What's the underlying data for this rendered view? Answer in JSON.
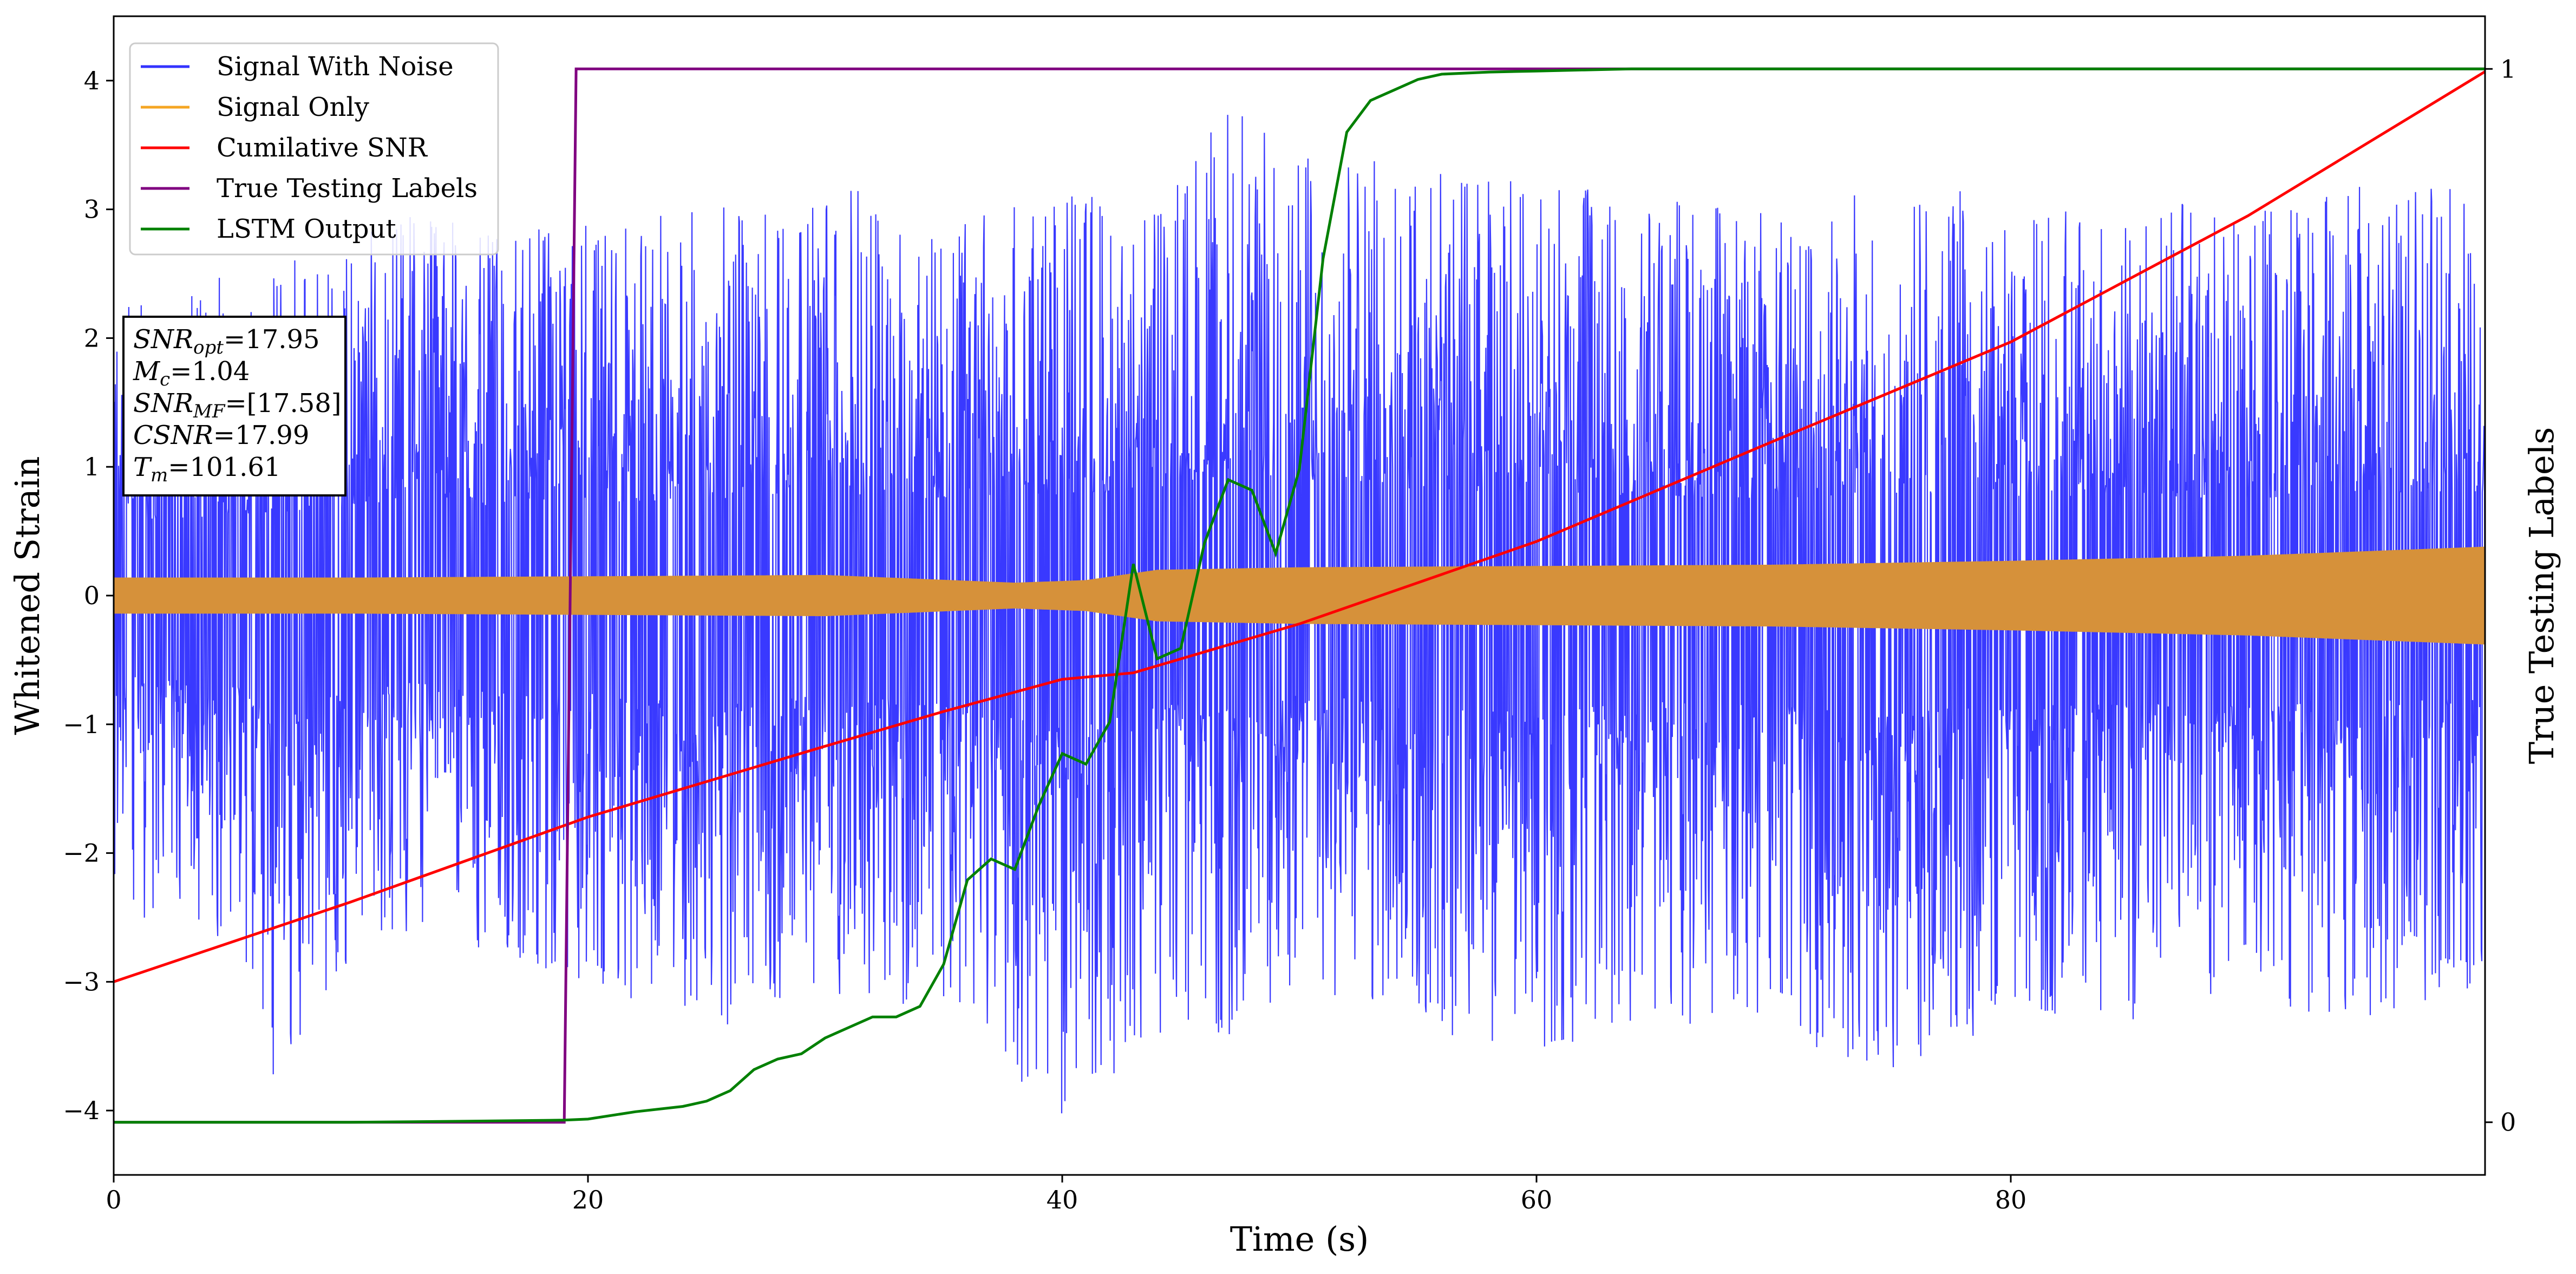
{
  "chart_data": {
    "type": "line",
    "xlabel": "Time (s)",
    "ylabel": "Whitened Strain",
    "y2label": "True Testing Labels",
    "xlim": [
      0,
      100
    ],
    "ylim": [
      -4.5,
      4.5
    ],
    "y2lim": [
      -0.05,
      1.05
    ],
    "xticks": [
      0,
      20,
      40,
      60,
      80
    ],
    "yticks": [
      -4,
      -3,
      -2,
      -1,
      0,
      1,
      2,
      3,
      4
    ],
    "y2ticks": [
      0,
      1
    ],
    "grid": false,
    "legend_position": "upper-left",
    "series": [
      {
        "name": "Signal With Noise",
        "axis": "left",
        "color": "#3333ff",
        "description": "dense noisy strain, envelope roughly within [-4.1, 3.8]",
        "x": [
          0,
          5,
          7,
          10,
          13,
          15,
          20,
          25,
          30,
          35,
          40,
          45,
          47,
          50,
          55,
          60,
          65,
          70,
          75,
          80,
          85,
          90,
          95,
          100
        ],
        "y_upper": [
          2.3,
          2.5,
          2.6,
          2.7,
          3.2,
          2.8,
          2.9,
          3.0,
          3.2,
          3.0,
          3.1,
          3.3,
          3.8,
          3.6,
          3.3,
          3.2,
          3.1,
          3.0,
          3.2,
          3.1,
          3.1,
          3.0,
          3.2,
          3.2
        ],
        "y_lower": [
          -2.5,
          -2.7,
          -3.9,
          -2.8,
          -2.7,
          -2.8,
          -3.0,
          -3.4,
          -3.1,
          -3.3,
          -4.1,
          -3.3,
          -3.5,
          -3.0,
          -3.4,
          -3.6,
          -3.3,
          -3.4,
          -3.7,
          -3.3,
          -3.4,
          -3.2,
          -3.3,
          -3.1
        ]
      },
      {
        "name": "Signal Only",
        "axis": "left",
        "color": "#f5a623",
        "description": "chirp waveform, amplitude envelope",
        "x": [
          0,
          10,
          20,
          30,
          38,
          41,
          44,
          50,
          60,
          70,
          80,
          90,
          100
        ],
        "amplitude": [
          0.14,
          0.14,
          0.15,
          0.16,
          0.1,
          0.12,
          0.2,
          0.22,
          0.23,
          0.24,
          0.27,
          0.31,
          0.38
        ]
      },
      {
        "name": "Cumilative SNR",
        "axis": "left",
        "color": "#ff0000",
        "x": [
          0,
          10,
          20,
          30,
          35,
          40,
          43,
          50,
          60,
          70,
          80,
          90,
          100
        ],
        "y": [
          -3.0,
          -2.38,
          -1.72,
          -1.17,
          -0.9,
          -0.65,
          -0.6,
          -0.22,
          0.42,
          1.2,
          1.97,
          2.95,
          4.07
        ]
      },
      {
        "name": "True Testing Labels",
        "axis": "right",
        "color": "#800080",
        "x": [
          0,
          19.0,
          19.5,
          100
        ],
        "y": [
          0,
          0,
          1,
          1
        ]
      },
      {
        "name": "LSTM Output",
        "axis": "right",
        "color": "#008000",
        "x": [
          0,
          10,
          15,
          19,
          20,
          22,
          24,
          25,
          26,
          27,
          28,
          29,
          30,
          31,
          32,
          33,
          34,
          35,
          36,
          37,
          38,
          39,
          40,
          41,
          42,
          43,
          44,
          45,
          46,
          47,
          48,
          49,
          50,
          51,
          52,
          53,
          54,
          55,
          56,
          58,
          60,
          62,
          64,
          66,
          70,
          80,
          90,
          100
        ],
        "y": [
          0,
          0,
          0.001,
          0.002,
          0.003,
          0.01,
          0.015,
          0.02,
          0.03,
          0.05,
          0.06,
          0.065,
          0.08,
          0.09,
          0.1,
          0.1,
          0.11,
          0.15,
          0.23,
          0.25,
          0.24,
          0.3,
          0.35,
          0.34,
          0.38,
          0.53,
          0.44,
          0.45,
          0.55,
          0.61,
          0.6,
          0.54,
          0.62,
          0.82,
          0.94,
          0.97,
          0.98,
          0.99,
          0.995,
          0.997,
          0.998,
          0.999,
          1.0,
          1.0,
          1.0,
          1.0,
          1.0,
          1.0
        ]
      }
    ],
    "annotation_lines": [
      {
        "sym": "SNR",
        "sub": "opt",
        "val": "=17.95"
      },
      {
        "sym": "M",
        "sub": "c",
        "val": "=1.04"
      },
      {
        "sym": "SNR",
        "sub": "MF",
        "val": "=[17.58]"
      },
      {
        "sym": "CSNR",
        "sub": "",
        "val": "=17.99"
      },
      {
        "sym": "T",
        "sub": "m",
        "val": "=101.61"
      }
    ]
  }
}
